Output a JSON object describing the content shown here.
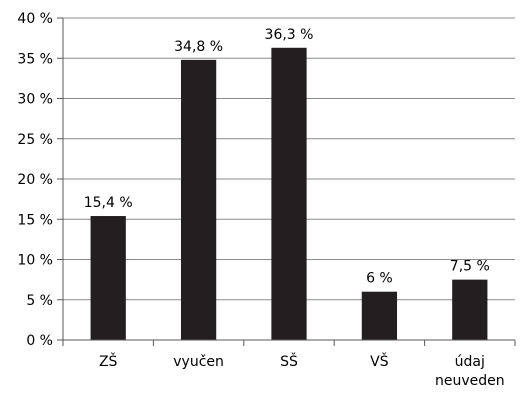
{
  "chart_data": {
    "type": "bar",
    "categories": [
      [
        "ZŠ"
      ],
      [
        "vyučen"
      ],
      [
        "SŠ"
      ],
      [
        "VŠ"
      ],
      [
        "údaj",
        "neuveden"
      ]
    ],
    "values": [
      15.4,
      34.8,
      36.3,
      6,
      7.5
    ],
    "data_labels": [
      "15,4 %",
      "34,8 %",
      "36,3 %",
      "6 %",
      "7,5 %"
    ],
    "ylim": [
      0,
      40
    ],
    "yticks": [
      0,
      5,
      10,
      15,
      20,
      25,
      30,
      35,
      40
    ],
    "ytick_labels": [
      "0 %",
      "5 %",
      "10 %",
      "15 %",
      "20 %",
      "25 %",
      "30 %",
      "35 %",
      "40 %"
    ],
    "grid": true,
    "legend": "none",
    "colors": {
      "bar": "#231f20",
      "grid": "#8c8c8c",
      "axis": "#5a5a5a"
    }
  }
}
